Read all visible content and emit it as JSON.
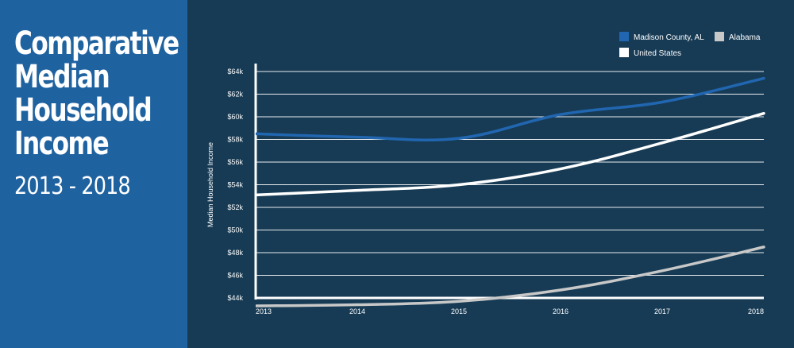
{
  "panel": {
    "title_lines": [
      "Comparative",
      "Median",
      "Household",
      "Income"
    ],
    "subtitle": "2013 - 2018"
  },
  "colors": {
    "background": "#173b55",
    "panel": "#1f62a0",
    "madison": "#2166b0",
    "alabama": "#c8c8c8",
    "us": "#ffffff",
    "grid": "#ffffff"
  },
  "chart_data": {
    "type": "line",
    "x": [
      2013,
      2014,
      2015,
      2016,
      2017,
      2018
    ],
    "ylabel": "Median Household Income",
    "ylim": [
      44000,
      64000
    ],
    "yticks": [
      44000,
      46000,
      48000,
      50000,
      52000,
      54000,
      56000,
      58000,
      60000,
      62000,
      64000
    ],
    "ytick_labels": [
      "$44k",
      "$46k",
      "$48k",
      "$50k",
      "$52k",
      "$54k",
      "$56k",
      "$58k",
      "$60k",
      "$62k",
      "$64k"
    ],
    "xtick_labels": [
      "2013",
      "2014",
      "2015",
      "2016",
      "2017",
      "2018"
    ],
    "grid": true,
    "legend_position": "top-right",
    "series": [
      {
        "name": "Madison County, AL",
        "color": "#2166b0",
        "values": [
          58500,
          58200,
          58100,
          60200,
          61300,
          63400
        ]
      },
      {
        "name": "Alabama",
        "color": "#c8c8c8",
        "values": [
          43300,
          43400,
          43700,
          44700,
          46400,
          48500
        ]
      },
      {
        "name": "United States",
        "color": "#ffffff",
        "values": [
          53100,
          53500,
          54000,
          55400,
          57700,
          60300
        ]
      }
    ]
  }
}
